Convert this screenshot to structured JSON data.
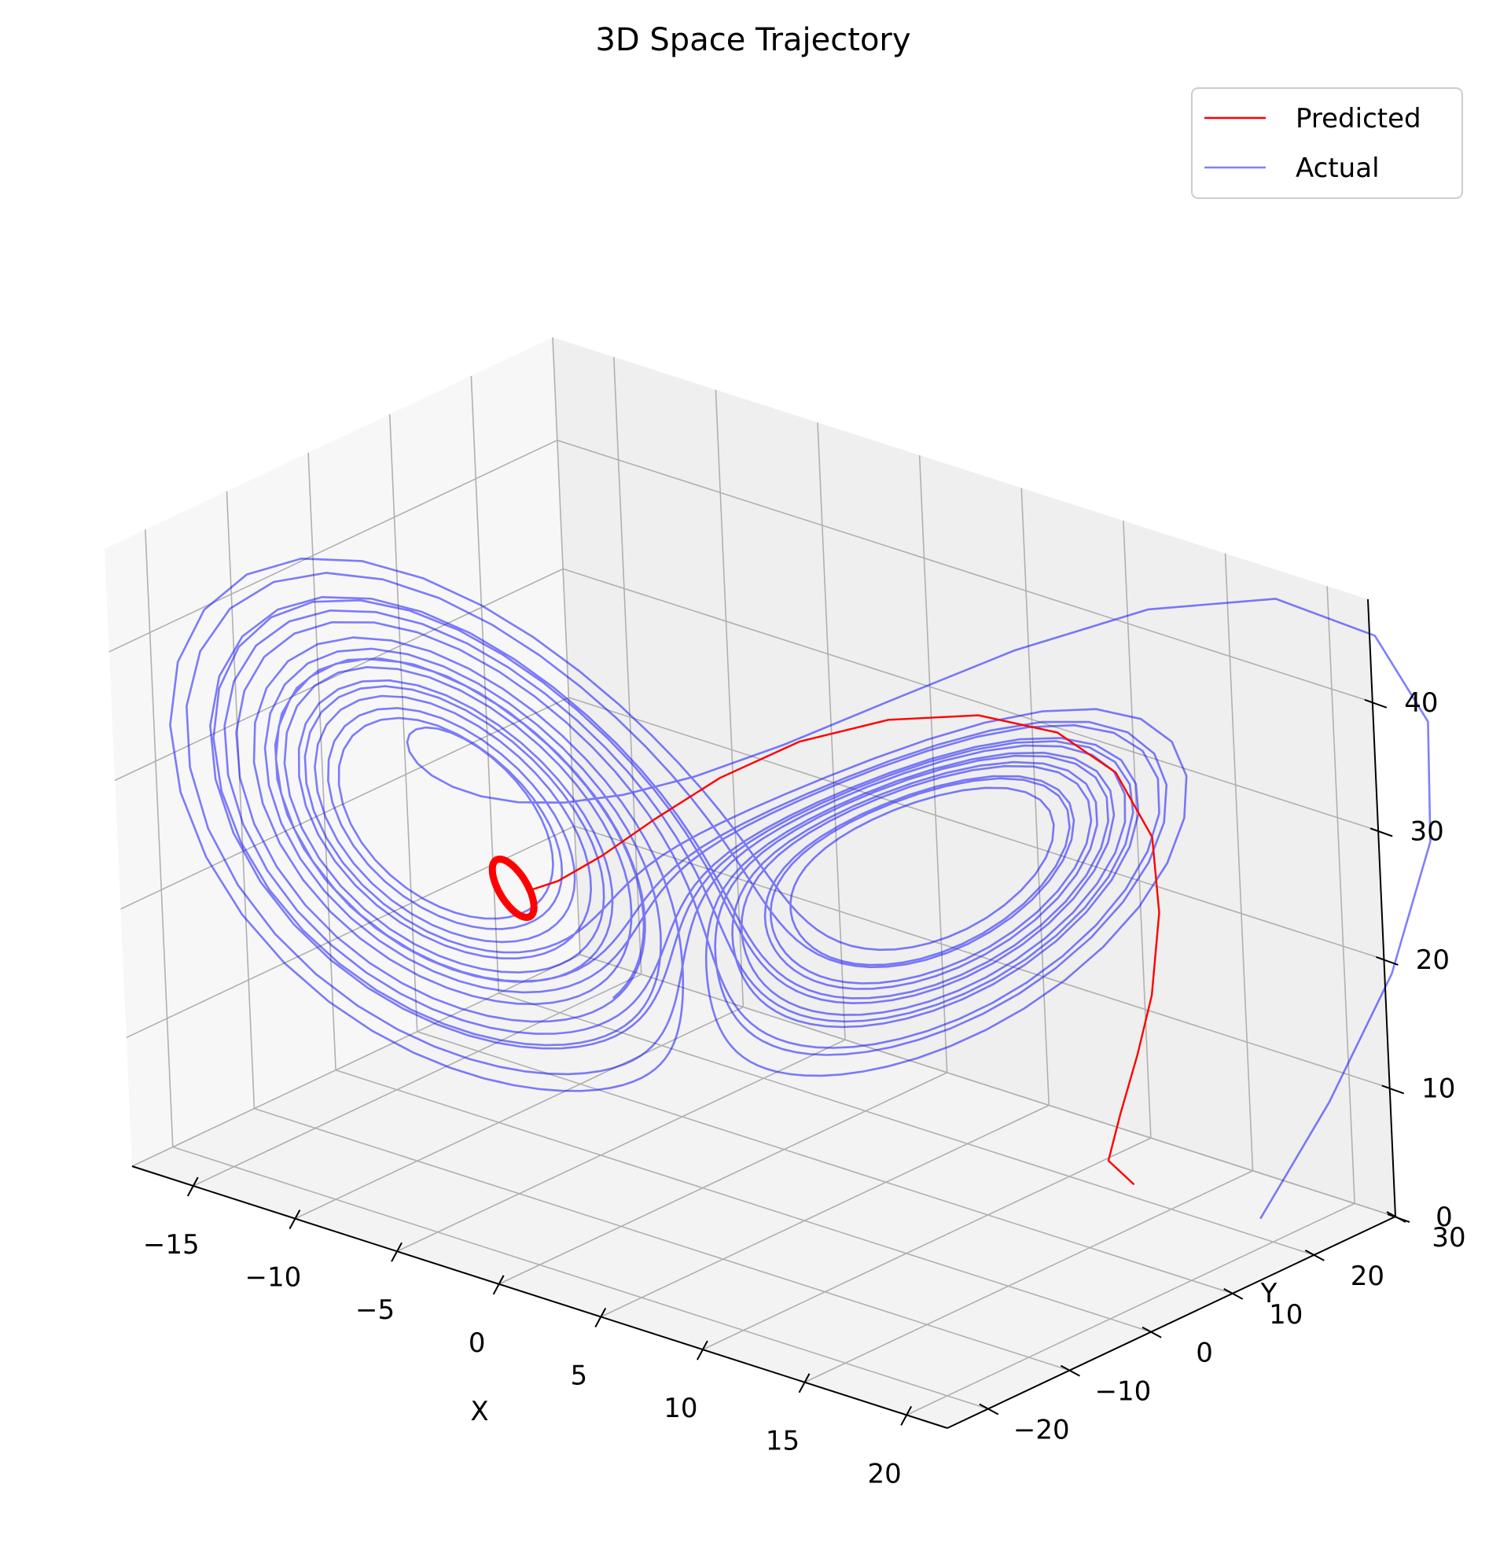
{
  "chart_data": {
    "type": "line",
    "projection": "3d",
    "title": "3D Space Trajectory",
    "xlabel": "X",
    "ylabel": "Y",
    "zlabel": "",
    "xlim": [
      -18,
      22
    ],
    "ylim": [
      -25,
      30
    ],
    "zlim": [
      0,
      48
    ],
    "xticks": [
      -15,
      -10,
      -5,
      0,
      5,
      10,
      15,
      20
    ],
    "yticks": [
      -20,
      -10,
      0,
      10,
      20,
      30
    ],
    "zticks": [
      0,
      10,
      20,
      30,
      40
    ],
    "xtick_labels": [
      "−15",
      "−10",
      "−5",
      "0",
      "5",
      "10",
      "15",
      "20"
    ],
    "ytick_labels": [
      "−20",
      "−10",
      "0",
      "10",
      "20",
      "30"
    ],
    "ztick_labels": [
      "0",
      "10",
      "20",
      "30",
      "40"
    ],
    "grid": true,
    "legend_position": "top-right",
    "series": [
      {
        "name": "Predicted",
        "color": "#ff0000",
        "description": "starts near (13, 20, 1), rises along the right lobe to a peak near z=41, then descends and spirals into a small persistent cycle around (-6, -6, 22)",
        "points": [
          [
            13.2,
            20.0,
            1.0
          ],
          [
            12.6,
            18.5,
            3.0
          ],
          [
            13.3,
            18.5,
            7.0
          ],
          [
            14.2,
            18.7,
            12.0
          ],
          [
            15.0,
            18.8,
            17.0
          ],
          [
            15.8,
            18.2,
            24.0
          ],
          [
            16.2,
            16.8,
            30.5
          ],
          [
            15.6,
            14.2,
            36.0
          ],
          [
            14.2,
            10.8,
            39.4
          ],
          [
            11.8,
            7.2,
            40.6
          ],
          [
            8.8,
            3.6,
            39.8
          ],
          [
            5.6,
            0.5,
            37.4
          ],
          [
            2.6,
            -2.0,
            33.8
          ],
          [
            0.0,
            -3.8,
            29.8
          ],
          [
            -2.2,
            -5.0,
            26.2
          ],
          [
            -4.2,
            -5.6,
            23.4
          ],
          [
            -5.6,
            -5.9,
            22.0
          ]
        ],
        "loop": {
          "center": [
            -6.2,
            -6.2,
            22.0
          ],
          "radius_x": 1.7,
          "radius_y": 1.7,
          "radius_z": 1.8,
          "turns": 3
        }
      },
      {
        "name": "Actual",
        "color": "#0000ff",
        "opacity": 0.5,
        "description": "Lorenz attractor trajectory: starts near (19, 21, 1), spirals around the right lobe, then crosses to the left lobe and spirals inward toward its centre",
        "sigma": 10,
        "rho": 28,
        "beta": 2.6667,
        "start": [
          19.0,
          21.0,
          1.0
        ]
      }
    ]
  }
}
